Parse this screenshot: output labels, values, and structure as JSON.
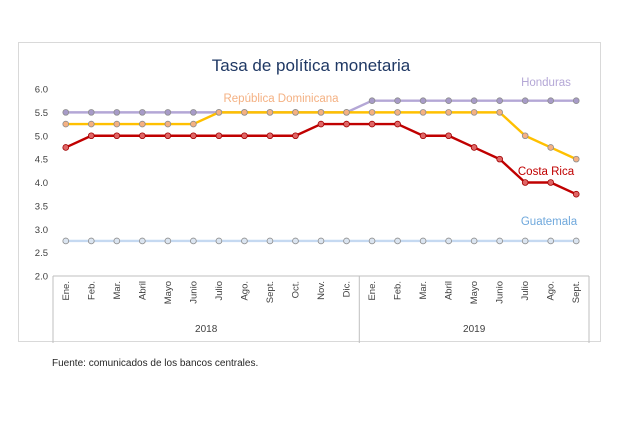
{
  "source": "Fuente: comunicados de los bancos centrales.",
  "chart_data": {
    "type": "line",
    "title": "Tasa de política monetaria",
    "xlabel": "",
    "ylabel": "",
    "ylim": [
      2.0,
      6.0
    ],
    "yticks": [
      "6.0",
      "5.5",
      "5.0",
      "4.5",
      "4.0",
      "3.5",
      "3.0",
      "2.5",
      "2.0"
    ],
    "grid": false,
    "categories": [
      "Ene.",
      "Feb.",
      "Mar.",
      "Abril",
      "Mayo",
      "Junio",
      "Julio",
      "Ago.",
      "Sept.",
      "Oct.",
      "Nov.",
      "Dic.",
      "Ene.",
      "Feb.",
      "Mar.",
      "Abril",
      "Mayo",
      "Junio",
      "Julio",
      "Ago.",
      "Sept."
    ],
    "years": [
      {
        "label": "2018",
        "start": 0,
        "end": 11
      },
      {
        "label": "2019",
        "start": 12,
        "end": 20
      }
    ],
    "series": [
      {
        "name": "Honduras",
        "color": "#b4a7d6",
        "line_color": "#b4a7d6",
        "marker_fill": "#a79bc8",
        "values": [
          5.5,
          5.5,
          5.5,
          5.5,
          5.5,
          5.5,
          5.5,
          5.5,
          5.5,
          5.5,
          5.5,
          5.5,
          5.75,
          5.75,
          5.75,
          5.75,
          5.75,
          5.75,
          5.75,
          5.75,
          5.75
        ]
      },
      {
        "name": "República Dominicana",
        "color": "#f4b183",
        "line_color": "#ffc000",
        "marker_fill": "#f4b183",
        "values": [
          5.25,
          5.25,
          5.25,
          5.25,
          5.25,
          5.25,
          5.5,
          5.5,
          5.5,
          5.5,
          5.5,
          5.5,
          5.5,
          5.5,
          5.5,
          5.5,
          5.5,
          5.5,
          5.0,
          4.75,
          4.5
        ]
      },
      {
        "name": "Costa Rica",
        "color": "#c00000",
        "line_color": "#c00000",
        "marker_fill": "#e06666",
        "values": [
          4.75,
          5.0,
          5.0,
          5.0,
          5.0,
          5.0,
          5.0,
          5.0,
          5.0,
          5.0,
          5.25,
          5.25,
          5.25,
          5.25,
          5.0,
          5.0,
          4.75,
          4.5,
          4.0,
          4.0,
          3.75
        ]
      },
      {
        "name": "Guatemala",
        "color": "#6fa8dc",
        "line_color": "#c5d9f1",
        "marker_fill": "#dbe5f1",
        "values": [
          2.75,
          2.75,
          2.75,
          2.75,
          2.75,
          2.75,
          2.75,
          2.75,
          2.75,
          2.75,
          2.75,
          2.75,
          2.75,
          2.75,
          2.75,
          2.75,
          2.75,
          2.75,
          2.75,
          2.75,
          2.75
        ]
      }
    ]
  }
}
